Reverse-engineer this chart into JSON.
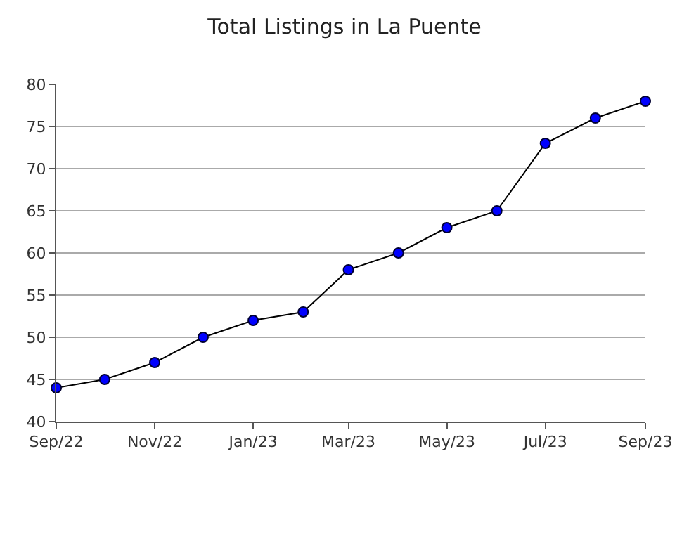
{
  "chart_data": {
    "type": "line",
    "title": "Total Listings in La Puente",
    "x": [
      "2022-09-01",
      "2022-10-01",
      "2022-11-01",
      "2022-12-01",
      "2023-01-01",
      "2023-02-01",
      "2023-03-01",
      "2023-04-01",
      "2023-05-01",
      "2023-06-01",
      "2023-07-01",
      "2023-08-01",
      "2023-09-01"
    ],
    "series": [
      {
        "color": "#0000ff",
        "values": [
          44,
          45,
          47,
          50,
          52,
          53,
          58,
          60,
          63,
          65,
          73,
          76,
          78
        ]
      }
    ],
    "xlim": [
      "2022-09-01",
      "2023-09-01"
    ],
    "xticks": [
      {
        "value": "2022-09-01",
        "label": "Sep/22"
      },
      {
        "value": "2022-11-01",
        "label": "Nov/22"
      },
      {
        "value": "2023-01-01",
        "label": "Jan/23"
      },
      {
        "value": "2023-03-01",
        "label": "Mar/23"
      },
      {
        "value": "2023-05-01",
        "label": "May/23"
      },
      {
        "value": "2023-07-01",
        "label": "Jul/23"
      },
      {
        "value": "2023-09-01",
        "label": "Sep/23"
      }
    ],
    "ylim": [
      40,
      80
    ],
    "yticks": [
      40,
      45,
      50,
      55,
      60,
      65,
      70,
      75,
      80
    ],
    "grid": "y",
    "marker": "circle",
    "line_style": "solid",
    "legend": false
  }
}
